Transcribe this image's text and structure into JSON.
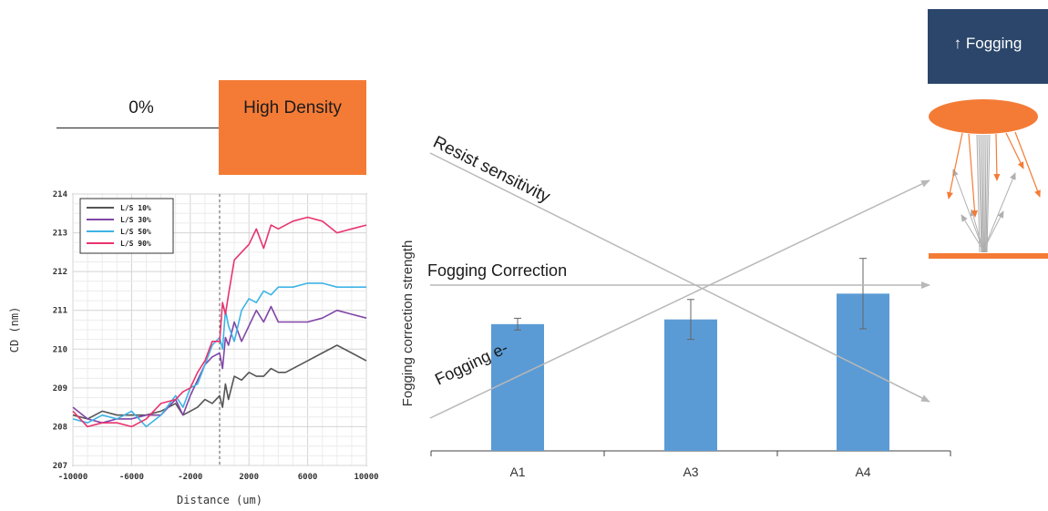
{
  "density": {
    "zero_label": "0%",
    "high_label": "High Density",
    "high_color": "#f47b36"
  },
  "fog_box": {
    "label": "↑ Fogging",
    "color": "#2b466a"
  },
  "colors": {
    "orange": "#f47b36",
    "arrow_gray": "#b8b8b8",
    "bar_blue": "#5b9bd5"
  },
  "chart_data": [
    {
      "type": "line",
      "title": "",
      "xlabel": "Distance (um)",
      "ylabel": "CD (nm)",
      "xlim": [
        -10000,
        10000
      ],
      "ylim": [
        207,
        214
      ],
      "xticks": [
        -10000,
        -6000,
        -2000,
        2000,
        6000,
        10000
      ],
      "yticks": [
        207,
        208,
        209,
        210,
        211,
        212,
        213,
        214
      ],
      "grid": true,
      "legend_position": "top-left",
      "vertical_marker_x": 0,
      "series": [
        {
          "name": "L/S 10%",
          "color": "#555555",
          "x": [
            -10000,
            -9000,
            -8000,
            -7000,
            -6000,
            -5000,
            -4000,
            -3000,
            -2500,
            -2000,
            -1500,
            -1000,
            -500,
            0,
            200,
            400,
            600,
            1000,
            1500,
            2000,
            2500,
            3000,
            3500,
            4000,
            4500,
            5000,
            6000,
            7000,
            8000,
            9000,
            10000
          ],
          "y": [
            208.3,
            208.2,
            208.4,
            208.3,
            208.3,
            208.3,
            208.4,
            208.6,
            208.3,
            208.4,
            208.5,
            208.7,
            208.6,
            208.8,
            208.5,
            209.1,
            208.7,
            209.3,
            209.2,
            209.4,
            209.3,
            209.3,
            209.5,
            209.4,
            209.4,
            209.5,
            209.7,
            209.9,
            210.1,
            209.9,
            209.7
          ]
        },
        {
          "name": "L/S 30%",
          "color": "#8046a6",
          "x": [
            -10000,
            -9000,
            -8000,
            -7000,
            -6000,
            -5000,
            -4000,
            -3000,
            -2500,
            -2000,
            -1500,
            -1000,
            -500,
            0,
            200,
            400,
            600,
            1000,
            1500,
            2000,
            2500,
            3000,
            3500,
            4000,
            4500,
            5000,
            6000,
            7000,
            8000,
            9000,
            10000
          ],
          "y": [
            208.5,
            208.2,
            208.1,
            208.2,
            208.2,
            208.3,
            208.3,
            208.7,
            208.3,
            208.8,
            209.2,
            209.6,
            209.8,
            209.9,
            209.5,
            210.3,
            210.1,
            210.7,
            210.2,
            210.6,
            211.0,
            210.7,
            211.1,
            210.7,
            210.7,
            210.7,
            210.7,
            210.8,
            211.0,
            210.9,
            210.8
          ]
        },
        {
          "name": "L/S 50%",
          "color": "#3eb3e6",
          "x": [
            -10000,
            -9000,
            -8000,
            -7000,
            -6000,
            -5000,
            -4000,
            -3000,
            -2500,
            -2000,
            -1500,
            -1000,
            -500,
            0,
            200,
            400,
            600,
            1000,
            1500,
            2000,
            2500,
            3000,
            3500,
            4000,
            4500,
            5000,
            6000,
            7000,
            8000,
            9000,
            10000
          ],
          "y": [
            208.2,
            208.1,
            208.3,
            208.2,
            208.4,
            208.0,
            208.3,
            208.8,
            208.5,
            209.0,
            209.1,
            209.6,
            210.1,
            210.3,
            210.0,
            211.0,
            210.6,
            210.2,
            211.0,
            211.3,
            211.2,
            211.5,
            211.4,
            211.6,
            211.6,
            211.6,
            211.7,
            211.7,
            211.6,
            211.6,
            211.6
          ]
        },
        {
          "name": "L/S 90%",
          "color": "#e8336d",
          "x": [
            -10000,
            -9000,
            -8000,
            -7000,
            -6000,
            -5000,
            -4000,
            -3000,
            -2500,
            -2000,
            -1500,
            -1000,
            -500,
            0,
            200,
            400,
            600,
            1000,
            1500,
            2000,
            2500,
            3000,
            3500,
            4000,
            4500,
            5000,
            6000,
            7000,
            8000,
            9000,
            10000
          ],
          "y": [
            208.4,
            208.0,
            208.1,
            208.1,
            208.0,
            208.2,
            208.6,
            208.7,
            208.9,
            209.0,
            209.4,
            209.7,
            210.2,
            210.2,
            211.2,
            210.9,
            211.4,
            212.3,
            212.5,
            212.7,
            213.1,
            212.6,
            213.2,
            213.1,
            213.2,
            213.3,
            213.4,
            213.3,
            213.0,
            213.1,
            213.2
          ]
        }
      ]
    },
    {
      "type": "bar",
      "title": "",
      "xlabel": "",
      "ylabel": "Fogging  correction strength",
      "categories": [
        "A1",
        "A3",
        "A4"
      ],
      "values": [
        5.4,
        5.6,
        6.7
      ],
      "errors": [
        0.25,
        0.85,
        1.5
      ],
      "ylim": [
        0,
        13
      ],
      "color": "#5b9bd5",
      "annotations": [
        {
          "text": "Resist sensitivity"
        },
        {
          "text": "Fogging Correction"
        },
        {
          "text": "Fogging e-"
        }
      ]
    }
  ]
}
